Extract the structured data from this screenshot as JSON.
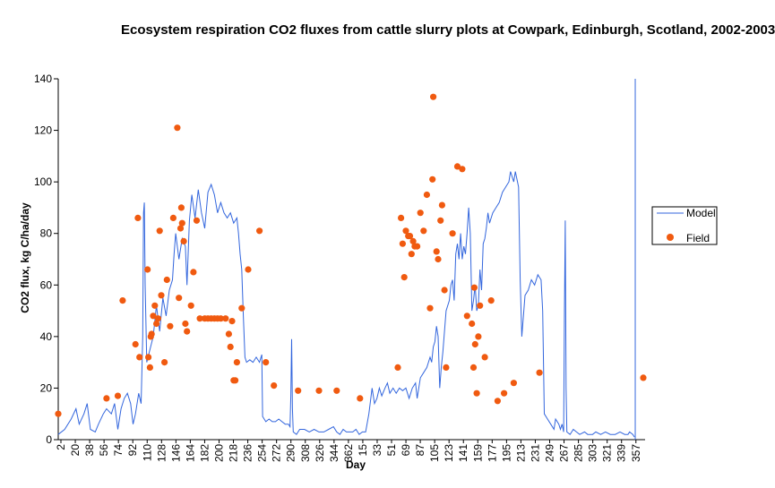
{
  "chart_data": {
    "type": "line",
    "title": "Ecosystem respiration CO2 fluxes from cattle slurry plots at Cowpark, Edinburgh, Scotland, 2002-2003",
    "xlabel": "Day",
    "ylabel": "CO2 flux, kg C/ha/day",
    "ylim": [
      0,
      140
    ],
    "yticks": [
      0,
      20,
      40,
      60,
      80,
      100,
      120,
      140
    ],
    "xticks": [
      "2",
      "20",
      "38",
      "56",
      "74",
      "92",
      "110",
      "128",
      "146",
      "164",
      "182",
      "200",
      "218",
      "236",
      "254",
      "272",
      "290",
      "308",
      "326",
      "344",
      "362",
      "15",
      "33",
      "51",
      "69",
      "87",
      "105",
      "123",
      "141",
      "159",
      "177",
      "195",
      "213",
      "231",
      "249",
      "267",
      "285",
      "303",
      "321",
      "339",
      "357"
    ],
    "x_range_days": [
      2,
      729
    ],
    "grid": false,
    "legend_position": "right",
    "series": [
      {
        "name": "Model",
        "type": "line",
        "color": "#3366dd",
        "points": [
          [
            2,
            2
          ],
          [
            10,
            4
          ],
          [
            18,
            8
          ],
          [
            24,
            12
          ],
          [
            28,
            6
          ],
          [
            34,
            10
          ],
          [
            38,
            14
          ],
          [
            42,
            4
          ],
          [
            48,
            3
          ],
          [
            52,
            6
          ],
          [
            58,
            10
          ],
          [
            62,
            12
          ],
          [
            68,
            10
          ],
          [
            72,
            14
          ],
          [
            76,
            4
          ],
          [
            80,
            12
          ],
          [
            84,
            16
          ],
          [
            88,
            18
          ],
          [
            92,
            14
          ],
          [
            95,
            6
          ],
          [
            98,
            10
          ],
          [
            102,
            18
          ],
          [
            105,
            14
          ],
          [
            107,
            40
          ],
          [
            108,
            88
          ],
          [
            109,
            92
          ],
          [
            110,
            60
          ],
          [
            112,
            30
          ],
          [
            116,
            35
          ],
          [
            120,
            40
          ],
          [
            124,
            52
          ],
          [
            128,
            42
          ],
          [
            132,
            55
          ],
          [
            136,
            48
          ],
          [
            140,
            58
          ],
          [
            144,
            62
          ],
          [
            146,
            72
          ],
          [
            148,
            80
          ],
          [
            152,
            70
          ],
          [
            156,
            78
          ],
          [
            160,
            75
          ],
          [
            162,
            60
          ],
          [
            165,
            85
          ],
          [
            168,
            95
          ],
          [
            172,
            86
          ],
          [
            176,
            97
          ],
          [
            180,
            88
          ],
          [
            184,
            82
          ],
          [
            188,
            96
          ],
          [
            192,
            99
          ],
          [
            196,
            95
          ],
          [
            200,
            88
          ],
          [
            204,
            92
          ],
          [
            208,
            88
          ],
          [
            212,
            86
          ],
          [
            216,
            88
          ],
          [
            220,
            84
          ],
          [
            224,
            86
          ],
          [
            226,
            80
          ],
          [
            228,
            72
          ],
          [
            230,
            66
          ],
          [
            232,
            48
          ],
          [
            234,
            32
          ],
          [
            236,
            30
          ],
          [
            240,
            31
          ],
          [
            244,
            30
          ],
          [
            248,
            32
          ],
          [
            252,
            30
          ],
          [
            255,
            33
          ],
          [
            256,
            9
          ],
          [
            260,
            7
          ],
          [
            264,
            8
          ],
          [
            268,
            7
          ],
          [
            272,
            7
          ],
          [
            276,
            8
          ],
          [
            280,
            7
          ],
          [
            284,
            6
          ],
          [
            288,
            6
          ],
          [
            290,
            5
          ],
          [
            291,
            17
          ],
          [
            292,
            39
          ],
          [
            293,
            12
          ],
          [
            294,
            3
          ],
          [
            298,
            2
          ],
          [
            302,
            4
          ],
          [
            308,
            4
          ],
          [
            314,
            3
          ],
          [
            320,
            4
          ],
          [
            326,
            3
          ],
          [
            332,
            3
          ],
          [
            338,
            4
          ],
          [
            344,
            5
          ],
          [
            348,
            3
          ],
          [
            352,
            2
          ],
          [
            356,
            4
          ],
          [
            360,
            3
          ],
          [
            364,
            3
          ],
          [
            368,
            3
          ],
          [
            372,
            4
          ],
          [
            376,
            2
          ],
          [
            380,
            3
          ],
          [
            384,
            3
          ],
          [
            388,
            10
          ],
          [
            392,
            20
          ],
          [
            395,
            14
          ],
          [
            398,
            16
          ],
          [
            401,
            20
          ],
          [
            404,
            17
          ],
          [
            408,
            20
          ],
          [
            411,
            22
          ],
          [
            414,
            18
          ],
          [
            418,
            20
          ],
          [
            422,
            18
          ],
          [
            426,
            20
          ],
          [
            430,
            19
          ],
          [
            434,
            20
          ],
          [
            438,
            16
          ],
          [
            442,
            20
          ],
          [
            446,
            22
          ],
          [
            448,
            16
          ],
          [
            452,
            24
          ],
          [
            456,
            26
          ],
          [
            460,
            28
          ],
          [
            462,
            30
          ],
          [
            464,
            32
          ],
          [
            466,
            30
          ],
          [
            468,
            36
          ],
          [
            470,
            38
          ],
          [
            472,
            44
          ],
          [
            474,
            40
          ],
          [
            476,
            20
          ],
          [
            478,
            28
          ],
          [
            480,
            34
          ],
          [
            484,
            50
          ],
          [
            488,
            54
          ],
          [
            490,
            60
          ],
          [
            492,
            62
          ],
          [
            494,
            54
          ],
          [
            496,
            72
          ],
          [
            498,
            76
          ],
          [
            500,
            70
          ],
          [
            502,
            80
          ],
          [
            504,
            70
          ],
          [
            506,
            75
          ],
          [
            508,
            72
          ],
          [
            510,
            80
          ],
          [
            512,
            90
          ],
          [
            514,
            80
          ],
          [
            516,
            50
          ],
          [
            518,
            54
          ],
          [
            520,
            60
          ],
          [
            522,
            50
          ],
          [
            524,
            52
          ],
          [
            526,
            66
          ],
          [
            528,
            58
          ],
          [
            530,
            76
          ],
          [
            532,
            78
          ],
          [
            534,
            82
          ],
          [
            536,
            88
          ],
          [
            538,
            84
          ],
          [
            540,
            86
          ],
          [
            542,
            88
          ],
          [
            546,
            90
          ],
          [
            550,
            92
          ],
          [
            554,
            96
          ],
          [
            558,
            98
          ],
          [
            562,
            100
          ],
          [
            564,
            104
          ],
          [
            568,
            100
          ],
          [
            570,
            104
          ],
          [
            574,
            98
          ],
          [
            576,
            62
          ],
          [
            578,
            40
          ],
          [
            582,
            56
          ],
          [
            586,
            58
          ],
          [
            590,
            62
          ],
          [
            594,
            60
          ],
          [
            598,
            64
          ],
          [
            602,
            62
          ],
          [
            604,
            50
          ],
          [
            606,
            10
          ],
          [
            610,
            8
          ],
          [
            614,
            6
          ],
          [
            618,
            4
          ],
          [
            620,
            8
          ],
          [
            624,
            6
          ],
          [
            626,
            4
          ],
          [
            628,
            6
          ],
          [
            630,
            3
          ],
          [
            631,
            50
          ],
          [
            632,
            85
          ],
          [
            633,
            20
          ],
          [
            634,
            3
          ],
          [
            638,
            2
          ],
          [
            642,
            4
          ],
          [
            646,
            3
          ],
          [
            650,
            2
          ],
          [
            656,
            3
          ],
          [
            660,
            2
          ],
          [
            666,
            2
          ],
          [
            670,
            3
          ],
          [
            676,
            2
          ],
          [
            682,
            3
          ],
          [
            688,
            2
          ],
          [
            694,
            2
          ],
          [
            700,
            3
          ],
          [
            706,
            2
          ],
          [
            710,
            2
          ],
          [
            712,
            3
          ],
          [
            716,
            2
          ],
          [
            718,
            1
          ]
        ]
      },
      {
        "name": "Field",
        "type": "scatter",
        "color": "#f05a10",
        "points": [
          [
            2,
            10
          ],
          [
            62,
            16
          ],
          [
            76,
            17
          ],
          [
            82,
            54
          ],
          [
            98,
            37
          ],
          [
            101,
            86
          ],
          [
            103,
            32
          ],
          [
            113,
            66
          ],
          [
            114,
            32
          ],
          [
            116,
            28
          ],
          [
            117,
            40
          ],
          [
            118,
            41
          ],
          [
            120,
            48
          ],
          [
            122,
            52
          ],
          [
            124,
            45
          ],
          [
            126,
            47
          ],
          [
            128,
            81
          ],
          [
            130,
            56
          ],
          [
            134,
            30
          ],
          [
            137,
            62
          ],
          [
            141,
            44
          ],
          [
            145,
            86
          ],
          [
            150,
            121
          ],
          [
            152,
            55
          ],
          [
            154,
            82
          ],
          [
            155,
            90
          ],
          [
            156,
            84
          ],
          [
            158,
            77
          ],
          [
            160,
            45
          ],
          [
            162,
            42
          ],
          [
            167,
            52
          ],
          [
            170,
            65
          ],
          [
            174,
            85
          ],
          [
            178,
            47
          ],
          [
            184,
            47
          ],
          [
            188,
            47
          ],
          [
            192,
            47
          ],
          [
            196,
            47
          ],
          [
            200,
            47
          ],
          [
            204,
            47
          ],
          [
            210,
            47
          ],
          [
            214,
            41
          ],
          [
            216,
            36
          ],
          [
            218,
            46
          ],
          [
            220,
            23
          ],
          [
            222,
            23
          ],
          [
            224,
            30
          ],
          [
            230,
            51
          ],
          [
            238,
            66
          ],
          [
            252,
            81
          ],
          [
            260,
            30
          ],
          [
            270,
            21
          ],
          [
            300,
            19
          ],
          [
            326,
            19
          ],
          [
            348,
            19
          ],
          [
            377,
            16
          ],
          [
            424,
            28
          ],
          [
            428,
            86
          ],
          [
            430,
            76
          ],
          [
            432,
            63
          ],
          [
            434,
            81
          ],
          [
            437,
            79
          ],
          [
            439,
            79
          ],
          [
            441,
            72
          ],
          [
            443,
            77
          ],
          [
            445,
            75
          ],
          [
            448,
            75
          ],
          [
            452,
            88
          ],
          [
            456,
            81
          ],
          [
            460,
            95
          ],
          [
            464,
            51
          ],
          [
            467,
            101
          ],
          [
            468,
            133
          ],
          [
            472,
            73
          ],
          [
            474,
            70
          ],
          [
            477,
            85
          ],
          [
            479,
            91
          ],
          [
            482,
            58
          ],
          [
            484,
            28
          ],
          [
            492,
            80
          ],
          [
            498,
            106
          ],
          [
            504,
            105
          ],
          [
            510,
            48
          ],
          [
            516,
            45
          ],
          [
            518,
            28
          ],
          [
            519,
            59
          ],
          [
            520,
            37
          ],
          [
            522,
            18
          ],
          [
            524,
            40
          ],
          [
            526,
            52
          ],
          [
            532,
            32
          ],
          [
            540,
            54
          ],
          [
            548,
            15
          ],
          [
            556,
            18
          ],
          [
            568,
            22
          ],
          [
            600,
            26
          ],
          [
            729,
            24
          ]
        ]
      }
    ],
    "legend": [
      {
        "label": "Model",
        "marker": "line"
      },
      {
        "label": "Field",
        "marker": "dot"
      }
    ],
    "right_edge_spike": {
      "x": 719,
      "y": 140
    }
  }
}
